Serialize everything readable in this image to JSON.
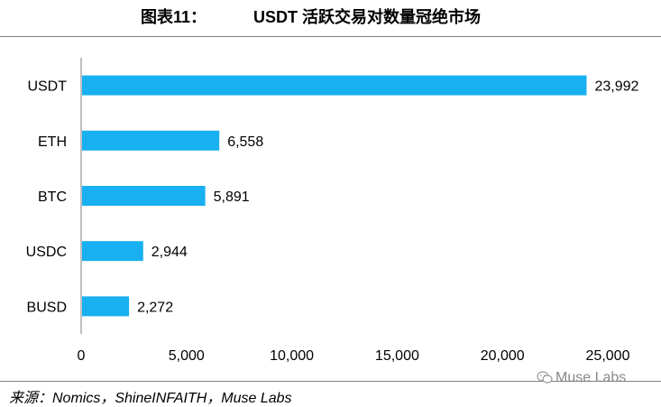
{
  "header": {
    "figure_number": "图表11：",
    "title": "USDT 活跃交易对数量冠绝市场"
  },
  "chart_data": {
    "type": "bar",
    "orientation": "horizontal",
    "categories": [
      "USDT",
      "ETH",
      "BTC",
      "USDC",
      "BUSD"
    ],
    "values": [
      23992,
      6558,
      5891,
      2944,
      2272
    ],
    "value_labels": [
      "23,992",
      "6,558",
      "5,891",
      "2,944",
      "2,272"
    ],
    "xlim": [
      0,
      25000
    ],
    "x_ticks": [
      0,
      5000,
      10000,
      15000,
      20000,
      25000
    ],
    "x_tick_labels": [
      "0",
      "5,000",
      "10,000",
      "15,000",
      "20,000",
      "25,000"
    ],
    "grid": false,
    "bar_color": "#18B0F0"
  },
  "footer": {
    "source": "来源：Nomics，ShineINFAITH，Muse Labs",
    "watermark": "Muse Labs",
    "watermark_icon": "wechat-icon"
  }
}
